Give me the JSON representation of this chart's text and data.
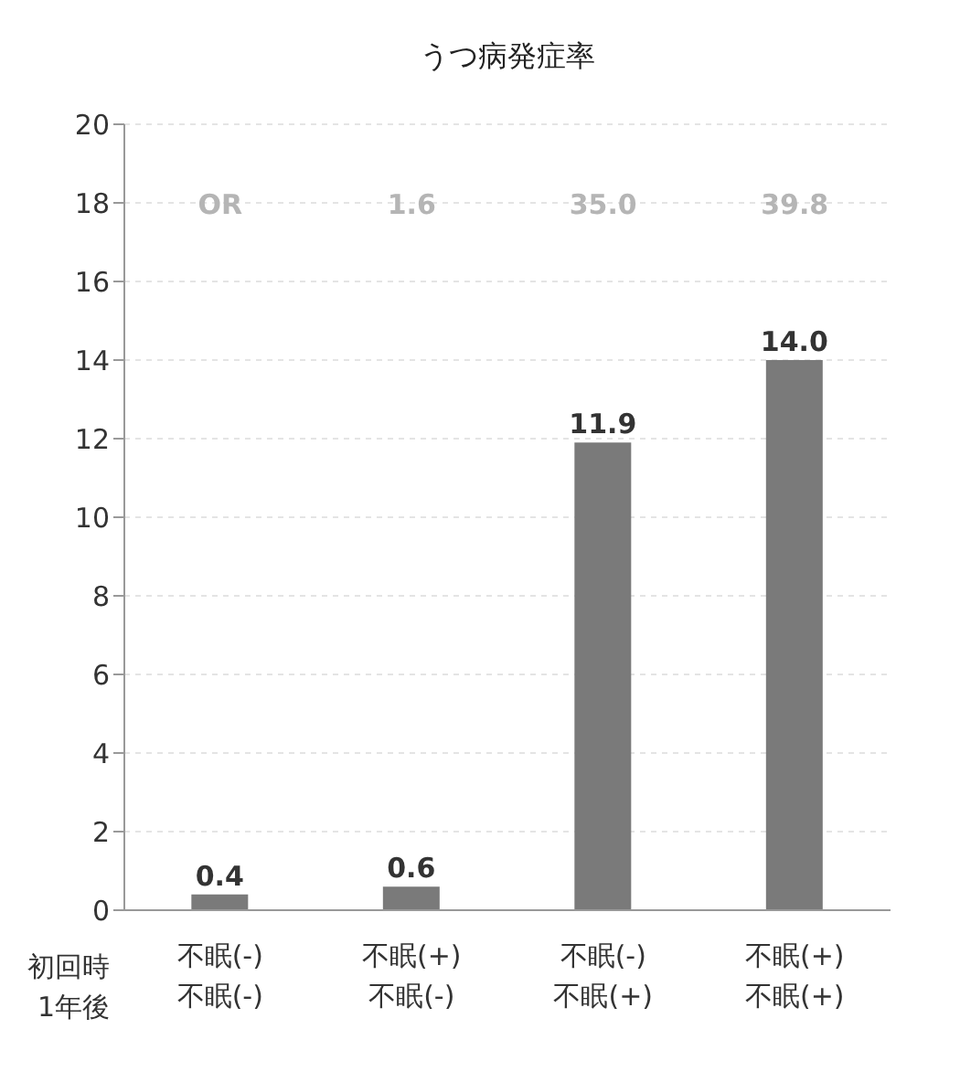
{
  "chart_data": {
    "type": "bar",
    "title": "うつ病発症率",
    "categories": [
      "不眠(-)\n不眠(-)",
      "不眠(+)\n不眠(-)",
      "不眠(-)\n不眠(+)",
      "不眠(+)\n不眠(+)"
    ],
    "values": [
      0.4,
      0.6,
      11.9,
      14.0
    ],
    "color": "#7a7a7a",
    "value_labels": [
      "0.4",
      "0.6",
      "11.9",
      "14.0"
    ],
    "ylim": [
      0,
      20
    ],
    "yticks": [
      0,
      2,
      4,
      6,
      8,
      10,
      12,
      14,
      16,
      18,
      20
    ],
    "grid": "y",
    "annotations": [
      "OR",
      "1.6",
      "35.0",
      "39.8",
      "初回時",
      "1年後"
    ]
  }
}
